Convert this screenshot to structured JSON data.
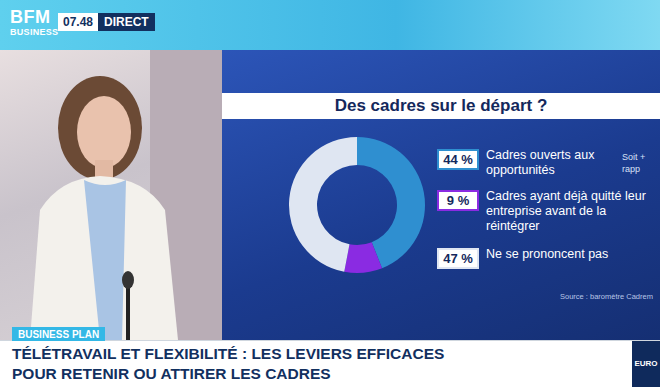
{
  "header": {
    "logo_top": "BFM",
    "logo_bottom": "BUSINESS",
    "time": "07.48",
    "live": "DIRECT"
  },
  "chart_data": {
    "type": "pie",
    "title": "Des cadres sur le départ ?",
    "categories": [
      "Cadres ouverts aux opportunités",
      "Cadres ayant déjà quitté leur entreprise avant de la réintégrer",
      "Ne se prononcent pas"
    ],
    "values": [
      44,
      9,
      47
    ],
    "value_labels": [
      "44 %",
      "9 %",
      "47 %"
    ],
    "colors": [
      "#2f8fd0",
      "#8a2be2",
      "#dfe6f2"
    ],
    "data_labels": true,
    "annotations": [
      "Soit +",
      "rapp"
    ],
    "source": "Source : baromètre Cadrem"
  },
  "banner": {
    "tag": "BUSINESS PLAN",
    "headline": [
      "TÉLÉTRAVAIL ET FLEXIBILITÉ : LES LEVIERS EFFICACES",
      "POUR RETENIR OU ATTIRER LES CADRES"
    ],
    "corner": "EURO"
  }
}
